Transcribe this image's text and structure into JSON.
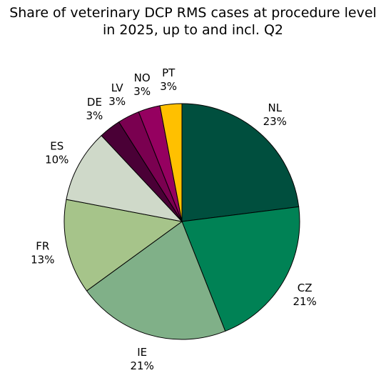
{
  "chart_data": {
    "type": "pie",
    "title_line1": "Share of veterinary DCP RMS cases at procedure level",
    "title_line2": "in 2025, up to and incl. Q2",
    "slices": [
      {
        "label": "NL",
        "value": 23,
        "pct_text": "23%",
        "color": "#004f3e"
      },
      {
        "label": "CZ",
        "value": 21,
        "pct_text": "21%",
        "color": "#008255"
      },
      {
        "label": "IE",
        "value": 21,
        "pct_text": "21%",
        "color": "#80b088"
      },
      {
        "label": "FR",
        "value": 13,
        "pct_text": "13%",
        "color": "#a6c48a"
      },
      {
        "label": "ES",
        "value": 10,
        "pct_text": "10%",
        "color": "#cfd9c9"
      },
      {
        "label": "DE",
        "value": 3,
        "pct_text": "3%",
        "color": "#4a0036"
      },
      {
        "label": "LV",
        "value": 3,
        "pct_text": "3%",
        "color": "#7a0050"
      },
      {
        "label": "NO",
        "value": 3,
        "pct_text": "3%",
        "color": "#950060"
      },
      {
        "label": "PT",
        "value": 3,
        "pct_text": "3%",
        "color": "#ffc000"
      }
    ],
    "legend": "none"
  }
}
